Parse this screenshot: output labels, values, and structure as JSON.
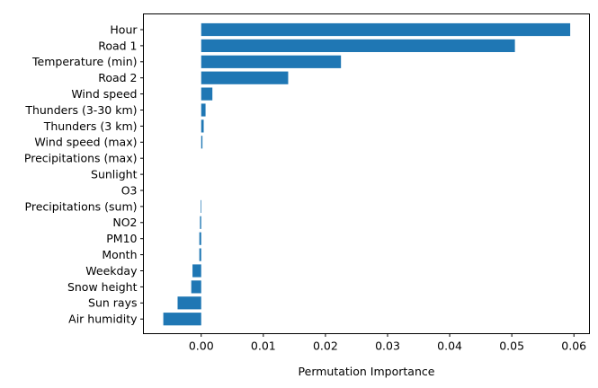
{
  "chart_data": {
    "type": "bar",
    "orientation": "horizontal",
    "title": "",
    "xlabel": "Permutation Importance",
    "ylabel": "",
    "color": "#1f77b4",
    "grid": false,
    "xlim": [
      -0.0093,
      0.0625
    ],
    "xticks": [
      0.0,
      0.01,
      0.02,
      0.03,
      0.04,
      0.05,
      0.06
    ],
    "xtick_labels": [
      "0.00",
      "0.01",
      "0.02",
      "0.03",
      "0.04",
      "0.05",
      "0.06"
    ],
    "categories": [
      "Hour",
      "Road 1",
      "Temperature (min)",
      "Road 2",
      "Wind speed",
      "Thunders (3-30 km)",
      "Thunders (3 km)",
      "Wind speed (max)",
      "Precipitations (max)",
      "Sunlight",
      "O3",
      "Precipitations (sum)",
      "NO2",
      "PM10",
      "Month",
      "Weekday",
      "Snow height",
      "Sun rays",
      "Air humidity"
    ],
    "values": [
      0.0594,
      0.0505,
      0.0225,
      0.014,
      0.0018,
      0.0007,
      0.0004,
      0.0002,
      0.0,
      0.0,
      0.0,
      -0.0001,
      -0.0002,
      -0.0003,
      -0.0003,
      -0.0014,
      -0.0016,
      -0.0038,
      -0.0061
    ]
  }
}
